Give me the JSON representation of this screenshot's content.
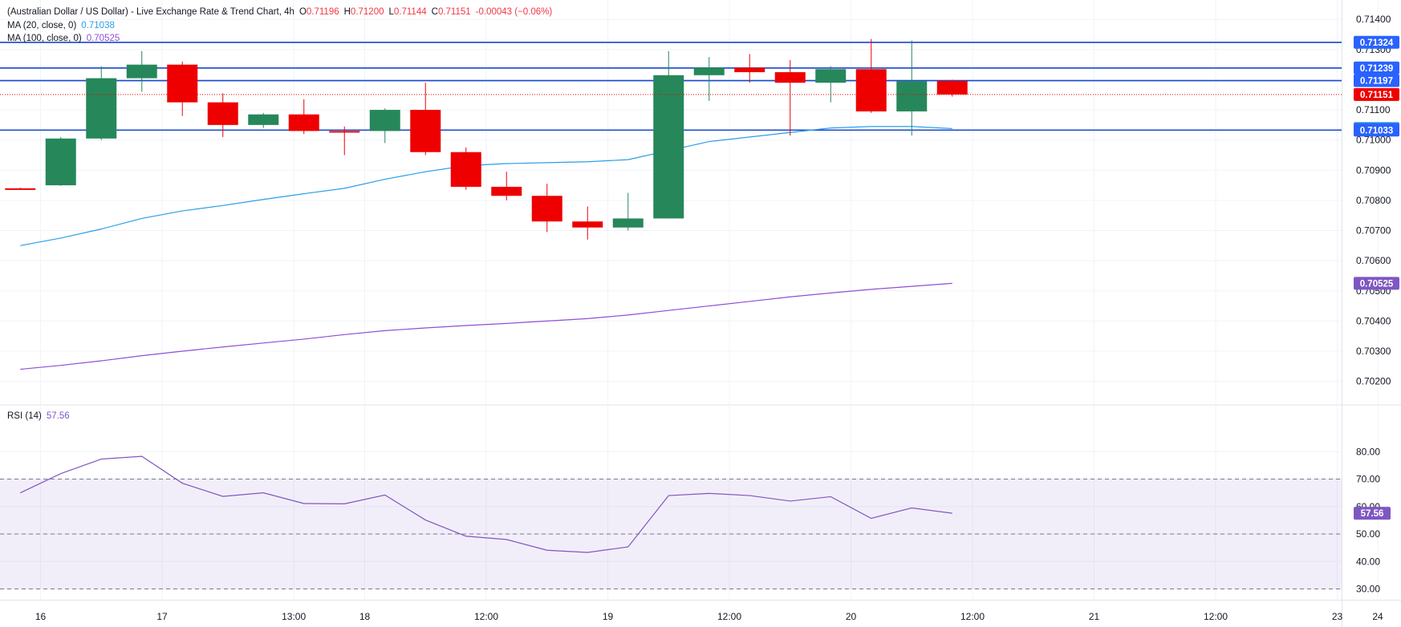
{
  "header": {
    "title": "(Australian Dollar / US Dollar) - Live Exchange Rate & Trend Chart, 4h",
    "o_label": "O",
    "o_value": "0.71196",
    "h_label": "H",
    "h_value": "0.71200",
    "l_label": "L",
    "l_value": "0.71144",
    "c_label": "C",
    "c_value": "0.71151",
    "change": "-0.00043 (−0.06%)"
  },
  "ma20": {
    "label": "MA (20, close, 0)",
    "value": "0.71038",
    "color": "#2a9ee8"
  },
  "ma100": {
    "label": "MA (100, close, 0)",
    "value": "0.70525",
    "color": "#8d4fd6"
  },
  "rsi": {
    "label": "RSI (14)",
    "value": "57.56",
    "color": "#7e57c2"
  },
  "colors": {
    "up": "#26875a",
    "down": "#ee0000",
    "hline": "#1848cc"
  },
  "chart_data": [
    {
      "type": "candlestick",
      "title": "(Australian Dollar / US Dollar) - Live Exchange Rate & Trend Chart, 4h",
      "ylim": [
        0.7015,
        0.7145
      ],
      "y_ticks": [
        "0.70200",
        "0.70300",
        "0.70400",
        "0.70500",
        "0.70600",
        "0.70700",
        "0.70800",
        "0.70900",
        "0.71000",
        "0.71100",
        "0.71200",
        "0.71300",
        "0.71400"
      ],
      "x_ticks": [
        {
          "label": "16",
          "i": 0.5
        },
        {
          "label": "17",
          "i": 3.5
        },
        {
          "label": "13:00",
          "i": 6.75
        },
        {
          "label": "18",
          "i": 8.5
        },
        {
          "label": "12:00",
          "i": 11.5
        },
        {
          "label": "19",
          "i": 14.5
        },
        {
          "label": "12:00",
          "i": 17.5
        },
        {
          "label": "20",
          "i": 20.5
        },
        {
          "label": "12:00",
          "i": 23.5
        },
        {
          "label": "21",
          "i": 26.5
        },
        {
          "label": "12:00",
          "i": 29.5
        },
        {
          "label": "23",
          "i": 32.5
        },
        {
          "label": "24",
          "i": 33.5
        }
      ],
      "candles": [
        {
          "o": 0.7084,
          "h": 0.70842,
          "l": 0.70836,
          "c": 0.70838
        },
        {
          "o": 0.7085,
          "h": 0.7101,
          "l": 0.70848,
          "c": 0.71005
        },
        {
          "o": 0.71005,
          "h": 0.71245,
          "l": 0.71,
          "c": 0.71205
        },
        {
          "o": 0.71205,
          "h": 0.71295,
          "l": 0.7116,
          "c": 0.7125
        },
        {
          "o": 0.7125,
          "h": 0.7126,
          "l": 0.7108,
          "c": 0.71125
        },
        {
          "o": 0.71125,
          "h": 0.71155,
          "l": 0.7101,
          "c": 0.7105
        },
        {
          "o": 0.7105,
          "h": 0.7109,
          "l": 0.7104,
          "c": 0.71085
        },
        {
          "o": 0.71085,
          "h": 0.71135,
          "l": 0.7102,
          "c": 0.7103
        },
        {
          "o": 0.7103,
          "h": 0.71045,
          "l": 0.7095,
          "c": 0.71025
        },
        {
          "o": 0.7103,
          "h": 0.71105,
          "l": 0.7099,
          "c": 0.711
        },
        {
          "o": 0.711,
          "h": 0.7119,
          "l": 0.7095,
          "c": 0.7096
        },
        {
          "o": 0.7096,
          "h": 0.70975,
          "l": 0.70835,
          "c": 0.70845
        },
        {
          "o": 0.70845,
          "h": 0.70895,
          "l": 0.708,
          "c": 0.70815
        },
        {
          "o": 0.70815,
          "h": 0.70855,
          "l": 0.70695,
          "c": 0.7073
        },
        {
          "o": 0.7073,
          "h": 0.7078,
          "l": 0.7067,
          "c": 0.7071
        },
        {
          "o": 0.7071,
          "h": 0.70825,
          "l": 0.707,
          "c": 0.7074
        },
        {
          "o": 0.7074,
          "h": 0.71295,
          "l": 0.7074,
          "c": 0.71215
        },
        {
          "o": 0.71215,
          "h": 0.71275,
          "l": 0.7113,
          "c": 0.7124
        },
        {
          "o": 0.7124,
          "h": 0.71285,
          "l": 0.7119,
          "c": 0.71225
        },
        {
          "o": 0.71225,
          "h": 0.71265,
          "l": 0.71015,
          "c": 0.7119
        },
        {
          "o": 0.7119,
          "h": 0.71245,
          "l": 0.71125,
          "c": 0.71235
        },
        {
          "o": 0.71235,
          "h": 0.71335,
          "l": 0.7109,
          "c": 0.71095
        },
        {
          "o": 0.71095,
          "h": 0.7133,
          "l": 0.71015,
          "c": 0.71195
        },
        {
          "o": 0.71196,
          "h": 0.712,
          "l": 0.71144,
          "c": 0.71151
        }
      ],
      "ma20": [
        0.7065,
        0.70675,
        0.70705,
        0.7074,
        0.70765,
        0.70783,
        0.70803,
        0.70822,
        0.7084,
        0.7087,
        0.70895,
        0.70915,
        0.70922,
        0.70925,
        0.70928,
        0.70935,
        0.70965,
        0.70995,
        0.7101,
        0.71025,
        0.7104,
        0.71045,
        0.71045,
        0.71038
      ],
      "ma100": [
        0.7024,
        0.70253,
        0.70268,
        0.70285,
        0.703,
        0.70314,
        0.70327,
        0.7034,
        0.70355,
        0.70368,
        0.70377,
        0.70385,
        0.70392,
        0.704,
        0.70408,
        0.7042,
        0.70435,
        0.7045,
        0.70465,
        0.7048,
        0.70493,
        0.70505,
        0.70515,
        0.70525
      ],
      "horizontal_lines": [
        0.71324,
        0.71239,
        0.71197,
        0.71033
      ],
      "price_labels": [
        {
          "text": "0.71324",
          "value": 0.71324,
          "color": "#2962ff"
        },
        {
          "text": "0.71239",
          "value": 0.71239,
          "color": "#2962ff"
        },
        {
          "text": "0.71197",
          "value": 0.71197,
          "color": "#2962ff"
        },
        {
          "text": "0.71151",
          "value": 0.71151,
          "color": "#ee0000"
        },
        {
          "text": "0.71038",
          "value": 0.71038,
          "color": "#1e88e5"
        },
        {
          "text": "0.71033",
          "value": 0.71033,
          "color": "#2962ff"
        },
        {
          "text": "0.70525",
          "value": 0.70525,
          "color": "#7e57c2"
        }
      ]
    },
    {
      "type": "line",
      "title": "RSI (14)",
      "ylim": [
        27.5,
        82.8
      ],
      "y_ticks": [
        "30.00",
        "40.00",
        "50.00",
        "60.00",
        "70.00",
        "80.00"
      ],
      "bands": [
        30,
        70
      ],
      "midline": 50,
      "values": [
        65,
        72,
        77.3,
        78.3,
        68.5,
        63.7,
        65,
        61.1,
        61,
        64.2,
        55.1,
        49.2,
        48,
        44.1,
        43.3,
        45.3,
        64,
        64.8,
        64,
        62,
        63.6,
        55.7,
        59.5,
        57.56
      ],
      "last_label": "57.56"
    }
  ]
}
